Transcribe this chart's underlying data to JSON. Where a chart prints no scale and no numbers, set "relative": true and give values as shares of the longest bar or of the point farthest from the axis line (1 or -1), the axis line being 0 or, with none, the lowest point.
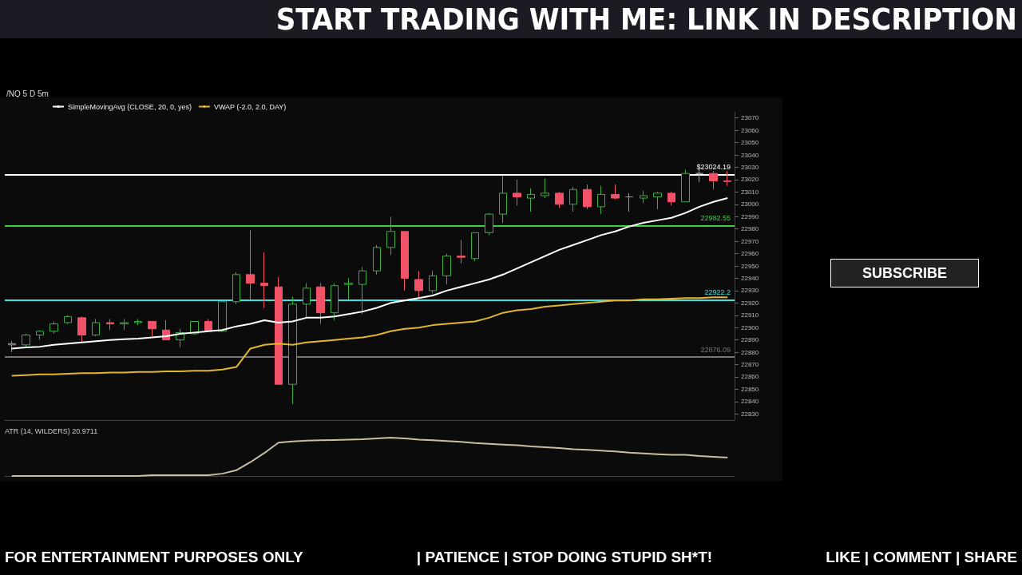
{
  "chart_data": [
    {
      "type": "candlestick",
      "title": "START TRADING WITH ME: LINK IN DESCRIPTION",
      "subtitle": "/NQ 5 D 5m",
      "annotations": [
        "FOR ENTERTAINMENT PURPOSES ONLY",
        "| PATIENCE | STOP DOING STUPID SH*T!",
        "LIKE | COMMENT | SHARE",
        "SUBSCRIBE"
      ],
      "categories": [
        null,
        null,
        null,
        null,
        null,
        null,
        null,
        null,
        null,
        null,
        null,
        null,
        null,
        null,
        null,
        null,
        null,
        null,
        null,
        null,
        null,
        null,
        null,
        null,
        null,
        null,
        null,
        null,
        null,
        null,
        null,
        null,
        null,
        null,
        null,
        null,
        null,
        null,
        null,
        null,
        null,
        null,
        null,
        null,
        null,
        null,
        null,
        null,
        null,
        null,
        null,
        null
      ],
      "ylim": [
        22825,
        23075
      ],
      "yticks": [
        22830,
        22840,
        22850,
        22860,
        22870,
        22880,
        22890,
        22900,
        22910,
        22920,
        22930,
        22940,
        22950,
        22960,
        22970,
        22980,
        22990,
        23000,
        23010,
        23020,
        23030,
        23040,
        23050,
        23060,
        23070
      ],
      "tick_labels": "y",
      "grid": false,
      "legend": "top left",
      "ref_lines": [
        {
          "axis": "y",
          "value": 23024.19,
          "label": "$23024.19",
          "color": "#ffffff"
        },
        {
          "axis": "y",
          "value": 22982.55,
          "label": "22982.55",
          "color": "#3ccf3c"
        },
        {
          "axis": "y",
          "value": 22922.2,
          "label": "22922.2",
          "color": "#40e0e0"
        },
        {
          "axis": "y",
          "value": 22876.09,
          "label": "22876.09",
          "color": "#777777"
        }
      ],
      "series": [
        {
          "type": "line",
          "name": "SimpleMovingAvg (CLOSE, 20, 0, yes)",
          "color": "#ffffff",
          "values": [
            22883,
            22884,
            22884.5,
            22886,
            22887,
            22888,
            22889,
            22890,
            22890.5,
            22891,
            22892,
            22893,
            22895,
            22896,
            22897,
            22898,
            22901,
            22903,
            22906,
            22904,
            22905,
            22908,
            22908,
            22909,
            22911,
            22913,
            22916,
            22920,
            22922,
            22924,
            22926,
            22930,
            22933,
            22936,
            22939,
            22943,
            22948,
            22953,
            22958,
            22963,
            22967,
            22971,
            22975,
            22978,
            22982,
            22985,
            22987,
            22989,
            22993,
            22998,
            23002,
            23005
          ]
        },
        {
          "type": "line",
          "name": "VWAP (-2.0, 2.0, DAY)",
          "color": "#e0b82a",
          "values": [
            22861,
            22861.5,
            22862,
            22862,
            22862.5,
            22863,
            22863,
            22863.5,
            22863.5,
            22864,
            22864,
            22864.5,
            22864.5,
            22865,
            22865,
            22866,
            22868,
            22883,
            22886,
            22887,
            22886,
            22888,
            22889,
            22890,
            22891,
            22892,
            22894,
            22897,
            22899,
            22900,
            22902,
            22903,
            22904,
            22905,
            22908,
            22912,
            22914,
            22915,
            22917,
            22918,
            22919,
            22920,
            22921,
            22922,
            22922,
            22923,
            22923,
            22923.5,
            22924,
            22924,
            22924.5,
            22924.5
          ]
        },
        {
          "type": "candlestick",
          "ohlc": [
            [
              22886,
              22889,
              22880,
              22887
            ],
            [
              22886,
              22895,
              22884,
              22894
            ],
            [
              22894,
              22898,
              22890,
              22897
            ],
            [
              22897,
              22905,
              22895,
              22903
            ],
            [
              22904,
              22910,
              22903,
              22909
            ],
            [
              22908,
              22909,
              22888,
              22894
            ],
            [
              22894,
              22907,
              22893,
              22904
            ],
            [
              22904,
              22907,
              22898,
              22903
            ],
            [
              22903,
              22907,
              22898,
              22904
            ],
            [
              22904,
              22907,
              22902,
              22905
            ],
            [
              22905,
              22905,
              22893,
              22899
            ],
            [
              22898,
              22906,
              22890,
              22890
            ],
            [
              22890,
              22899,
              22884,
              22896
            ],
            [
              22895,
              22905,
              22894,
              22905
            ],
            [
              22905,
              22907,
              22897,
              22897
            ],
            [
              22897,
              22921,
              22897,
              22921
            ],
            [
              22921,
              22945,
              22919,
              22943
            ],
            [
              22943,
              22979,
              22923,
              22936
            ],
            [
              22936,
              22961,
              22916,
              22934
            ],
            [
              22933,
              22941,
              22854,
              22854
            ],
            [
              22854,
              22925,
              22838,
              22919
            ],
            [
              22919,
              22936,
              22908,
              22932
            ],
            [
              22933,
              22936,
              22903,
              22912
            ],
            [
              22912,
              22936,
              22906,
              22934
            ],
            [
              22935,
              22940,
              22923,
              22936
            ],
            [
              22935,
              22949,
              22911,
              22946
            ],
            [
              22946,
              22967,
              22943,
              22965
            ],
            [
              22965,
              22990,
              22959,
              22978
            ],
            [
              22978,
              22978,
              22930,
              22940
            ],
            [
              22939,
              22946,
              22924,
              22930
            ],
            [
              22930,
              22946,
              22928,
              22942
            ],
            [
              22942,
              22960,
              22935,
              22958
            ],
            [
              22958,
              22971,
              22952,
              22957
            ],
            [
              22956,
              22977,
              22954,
              22977
            ],
            [
              22977,
              22993,
              22975,
              22992
            ],
            [
              22992,
              23023,
              22985,
              23009
            ],
            [
              23009,
              23020,
              22999,
              23006
            ],
            [
              23005,
              23013,
              22994,
              23008
            ],
            [
              23007,
              23021,
              23005,
              23009
            ],
            [
              23009,
              23010,
              22997,
              23000
            ],
            [
              23000,
              23014,
              22994,
              23012
            ],
            [
              23012,
              23016,
              22996,
              22998
            ],
            [
              22998,
              23015,
              22992,
              23008
            ],
            [
              23008,
              23016,
              23004,
              23005
            ],
            [
              23006,
              23009,
              22994,
              23006
            ],
            [
              23005,
              23011,
              23001,
              23007
            ],
            [
              23006,
              23010,
              22996,
              23009
            ],
            [
              23009,
              23010,
              22999,
              23002
            ],
            [
              23002,
              23028,
              23002,
              23025
            ],
            [
              23025,
              23030,
              23018,
              23025
            ],
            [
              23025,
              23027,
              23012,
              23019
            ],
            [
              23019,
              23027,
              23015,
              23018.5
            ]
          ],
          "colors": [
            "#9a9a9a",
            "#3cb043",
            "#3cb043",
            "#3cb043",
            "#3cb043",
            "#f25267",
            "#3cb043",
            "#f25267",
            "#3cb043",
            "#3cb043",
            "#f25267",
            "#f25267",
            "#3cb043",
            "#3cb043",
            "#f25267",
            "#3cb043",
            "#3cb043",
            "#f25267",
            "#f25267",
            "#f25267",
            "#3cb043",
            "#3cb043",
            "#f25267",
            "#3cb043",
            "#3cb043",
            "#3cb043",
            "#3cb043",
            "#3cb043",
            "#f25267",
            "#f25267",
            "#3cb043",
            "#3cb043",
            "#f25267",
            "#3cb043",
            "#3cb043",
            "#3cb043",
            "#f25267",
            "#3cb043",
            "#3cb043",
            "#f25267",
            "#3cb043",
            "#f25267",
            "#3cb043",
            "#f25267",
            "#9a9a9a",
            "#3cb043",
            "#3cb043",
            "#f25267",
            "#3cb043",
            "#9a9a9a",
            "#f25267",
            "#f25267"
          ]
        }
      ]
    },
    {
      "type": "line",
      "title": "ATR (14, WILDERS)",
      "annotations": [
        "20.9711"
      ],
      "relative": true,
      "tick_labels": false,
      "categories": [
        null,
        null,
        null,
        null,
        null,
        null,
        null,
        null,
        null,
        null,
        null,
        null,
        null,
        null,
        null,
        null,
        null,
        null,
        null,
        null,
        null,
        null,
        null,
        null,
        null,
        null,
        null,
        null,
        null,
        null,
        null,
        null,
        null,
        null,
        null,
        null,
        null,
        null,
        null,
        null,
        null,
        null,
        null,
        null,
        null,
        null,
        null,
        null,
        null,
        null,
        null,
        null
      ],
      "series": [
        {
          "color": "#c8c0a0",
          "values": [
            0,
            0,
            0,
            0,
            0,
            0,
            0,
            0,
            0,
            0,
            0.02,
            0.02,
            0.02,
            0.02,
            0.02,
            0.06,
            0.15,
            0.36,
            0.6,
            0.87,
            0.9,
            0.92,
            0.93,
            0.94,
            0.95,
            0.96,
            0.98,
            1,
            0.98,
            0.95,
            0.93,
            0.91,
            0.89,
            0.86,
            0.84,
            0.82,
            0.8,
            0.77,
            0.75,
            0.73,
            0.7,
            0.68,
            0.66,
            0.64,
            0.61,
            0.59,
            0.57,
            0.55,
            0.55,
            0.52,
            0.5,
            0.48
          ]
        }
      ]
    }
  ]
}
